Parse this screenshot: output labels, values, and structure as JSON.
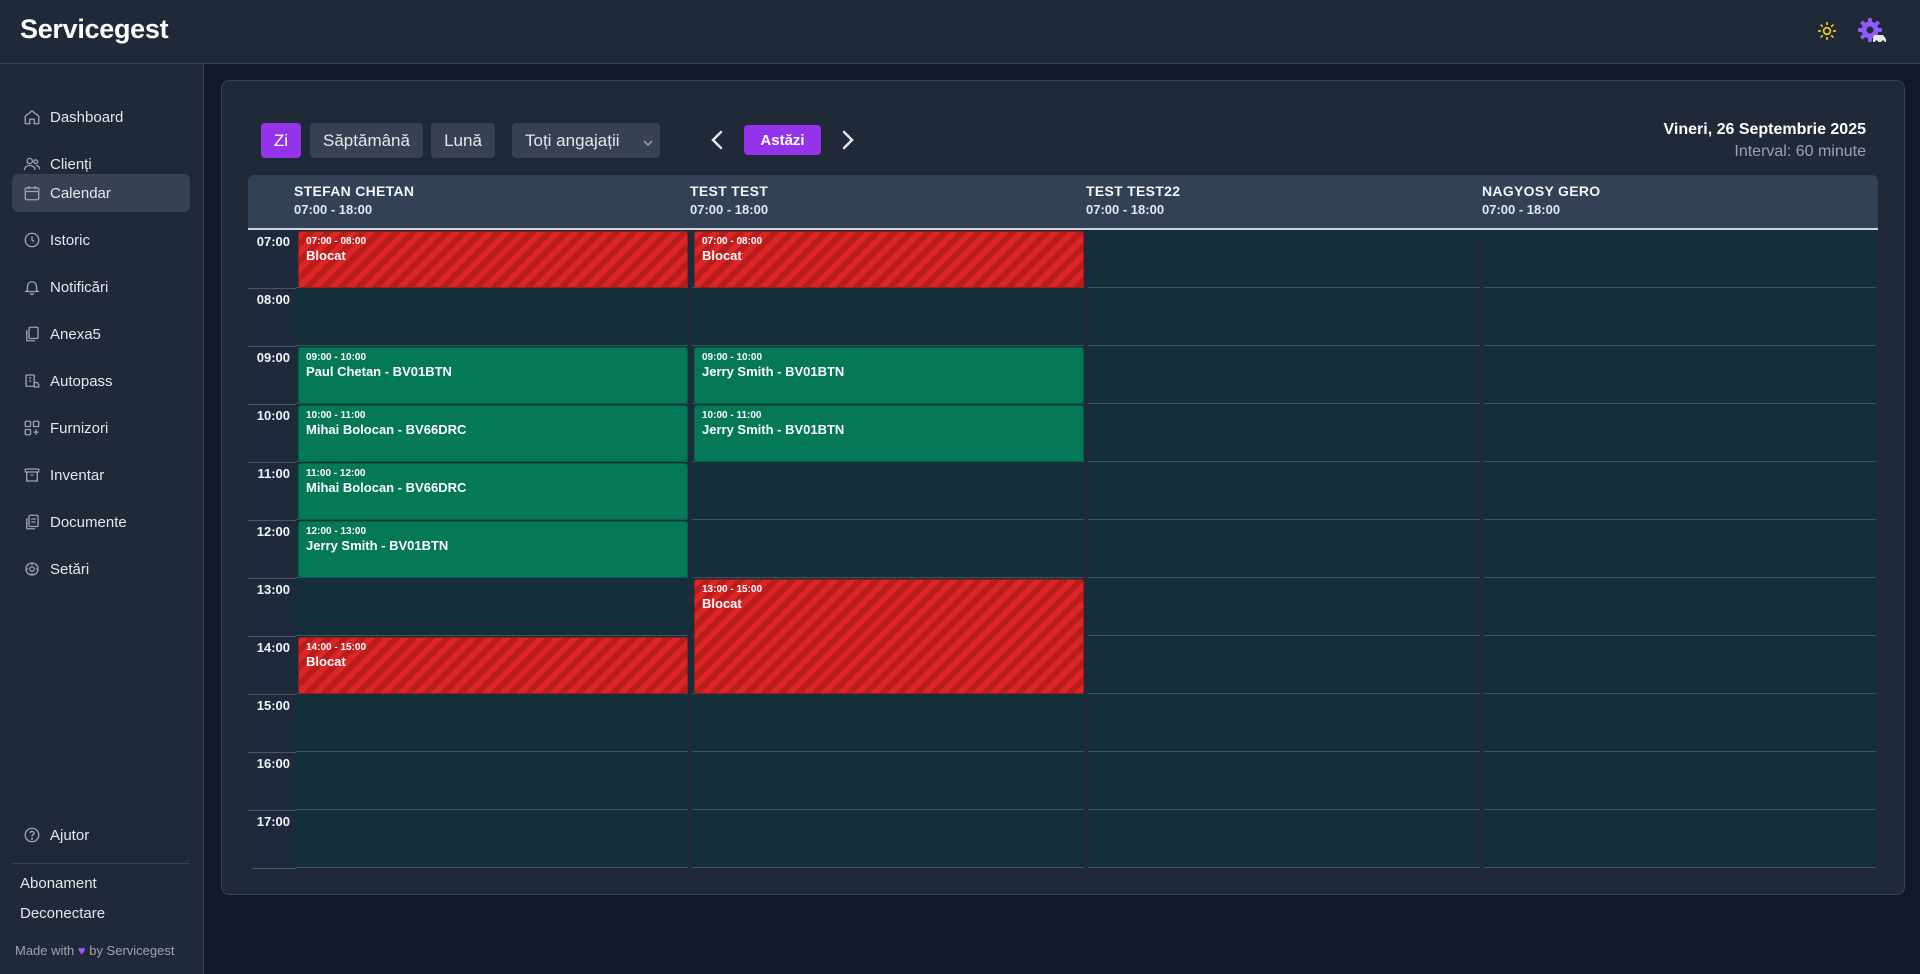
{
  "app": {
    "brand": "Servicegest"
  },
  "topbar": {
    "icons": [
      "sun-icon",
      "settings-car-icon"
    ]
  },
  "sidebar": {
    "items": [
      {
        "label": "Dashboard",
        "icon": "home-icon"
      },
      {
        "label": "Clienți",
        "icon": "users-icon"
      },
      {
        "label": "Calendar",
        "icon": "calendar-icon",
        "active": true
      },
      {
        "label": "Istoric",
        "icon": "clock-icon"
      },
      {
        "label": "Notificări",
        "icon": "bell-icon"
      },
      {
        "label": "Anexa5",
        "icon": "clipboard-icon"
      },
      {
        "label": "Autopass",
        "icon": "car-icon"
      },
      {
        "label": "Furnizori",
        "icon": "grid-plus-icon"
      },
      {
        "label": "Inventar",
        "icon": "archive-icon"
      },
      {
        "label": "Documente",
        "icon": "documents-icon"
      },
      {
        "label": "Setări",
        "icon": "settings-icon"
      }
    ],
    "help": "Ajutor",
    "subscription": "Abonament",
    "logout": "Deconectare",
    "footer_prefix": "Made with",
    "footer_suffix": "by Servicegest"
  },
  "toolbar": {
    "view_day": "Zi",
    "view_week": "Săptămână",
    "view_month": "Lună",
    "employee_filter": "Toți angajații",
    "today": "Astăzi",
    "date": "Vineri, 26 Septembrie 2025",
    "interval": "Interval: 60 minute"
  },
  "calendar": {
    "hours": [
      "07:00",
      "08:00",
      "09:00",
      "10:00",
      "11:00",
      "12:00",
      "13:00",
      "14:00",
      "15:00",
      "16:00",
      "17:00"
    ],
    "employees": [
      {
        "name": "STEFAN CHETAN",
        "hours": "07:00 - 18:00",
        "events": [
          {
            "time": "07:00 - 08:00",
            "title": "Blocat",
            "type": "blocked",
            "start": 7,
            "end": 8
          },
          {
            "time": "09:00 - 10:00",
            "title": "Paul Chetan - BV01BTN",
            "type": "appointment",
            "start": 9,
            "end": 10
          },
          {
            "time": "10:00 - 11:00",
            "title": "Mihai Bolocan - BV66DRC",
            "type": "appointment",
            "start": 10,
            "end": 11
          },
          {
            "time": "11:00 - 12:00",
            "title": "Mihai Bolocan - BV66DRC",
            "type": "appointment",
            "start": 11,
            "end": 12
          },
          {
            "time": "12:00 - 13:00",
            "title": "Jerry Smith - BV01BTN",
            "type": "appointment",
            "start": 12,
            "end": 13
          },
          {
            "time": "14:00 - 15:00",
            "title": "Blocat",
            "type": "blocked",
            "start": 14,
            "end": 15
          }
        ]
      },
      {
        "name": "TEST TEST",
        "hours": "07:00 - 18:00",
        "events": [
          {
            "time": "07:00 - 08:00",
            "title": "Blocat",
            "type": "blocked",
            "start": 7,
            "end": 8
          },
          {
            "time": "09:00 - 10:00",
            "title": "Jerry Smith - BV01BTN",
            "type": "appointment",
            "start": 9,
            "end": 10
          },
          {
            "time": "10:00 - 11:00",
            "title": "Jerry Smith - BV01BTN",
            "type": "appointment",
            "start": 10,
            "end": 11
          },
          {
            "time": "13:00 - 15:00",
            "title": "Blocat",
            "type": "blocked",
            "start": 13,
            "end": 15
          }
        ]
      },
      {
        "name": "TEST TEST22",
        "hours": "07:00 - 18:00",
        "events": []
      },
      {
        "name": "NAGYOSY GERO",
        "hours": "07:00 - 18:00",
        "events": []
      }
    ]
  }
}
